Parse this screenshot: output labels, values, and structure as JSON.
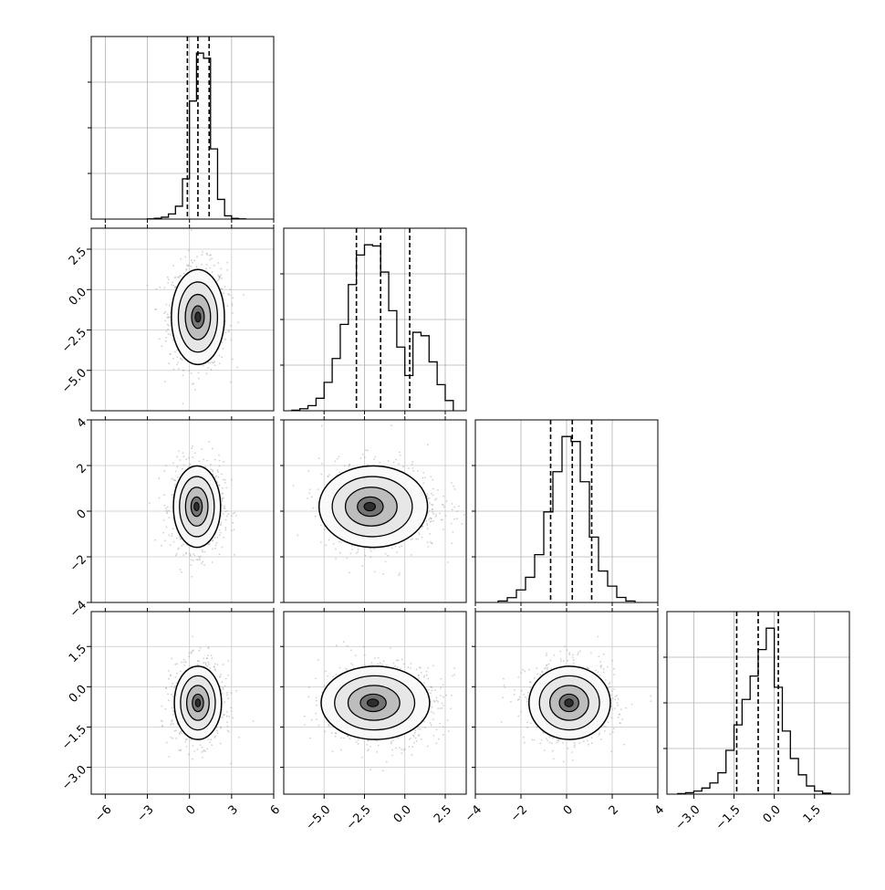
{
  "chart_data": {
    "type": "corner",
    "n_params": 4,
    "grid": true,
    "quantiles": [
      0.16,
      0.5,
      0.84
    ],
    "params": [
      {
        "range": [
          -7.0,
          6.0
        ],
        "ticks": [
          -6,
          -3,
          0,
          3,
          6
        ],
        "tick_labels": [
          "−6",
          "−3",
          "0",
          "3",
          "6"
        ],
        "quantile_values": [
          -0.15,
          0.6,
          1.4
        ],
        "hist": {
          "bin_edges": [
            -3.0,
            -2.5,
            -2.0,
            -1.5,
            -1.0,
            -0.5,
            0.0,
            0.5,
            1.0,
            1.5,
            2.0,
            2.5,
            3.0,
            3.5,
            4.0
          ],
          "counts": [
            3,
            9,
            22,
            60,
            150,
            470,
            1380,
            1940,
            1880,
            820,
            230,
            38,
            8,
            2
          ]
        }
      },
      {
        "range": [
          -7.5,
          3.8
        ],
        "ticks": [
          -5.0,
          -2.5,
          0.0,
          2.5
        ],
        "tick_labels": [
          "−5.0",
          "−2.5",
          "0.0",
          "2.5"
        ],
        "quantile_values": [
          -3.0,
          -1.5,
          0.3
        ],
        "hist": {
          "bin_edges": [
            -7.0,
            -6.5,
            -6.0,
            -5.5,
            -5.0,
            -4.5,
            -4.0,
            -3.5,
            -3.0,
            -2.5,
            -2.0,
            -1.5,
            -1.0,
            -0.5,
            0.0,
            0.5,
            1.0,
            1.5,
            2.0,
            2.5,
            3.0
          ],
          "counts": [
            5,
            18,
            45,
            110,
            250,
            460,
            760,
            1110,
            1370,
            1460,
            1450,
            1220,
            880,
            560,
            310,
            690,
            660,
            430,
            230,
            90
          ]
        }
      },
      {
        "range": [
          -4.0,
          4.0
        ],
        "ticks": [
          -4,
          -2,
          0,
          2,
          4
        ],
        "tick_labels": [
          "−4",
          "−2",
          "0",
          "2",
          "4"
        ],
        "quantile_values": [
          -0.7,
          0.25,
          1.1
        ],
        "hist": {
          "bin_edges": [
            -3.0,
            -2.6,
            -2.2,
            -1.8,
            -1.4,
            -1.0,
            -0.6,
            -0.2,
            0.2,
            0.6,
            1.0,
            1.4,
            1.8,
            2.2,
            2.6,
            3.0
          ],
          "counts": [
            12,
            38,
            100,
            200,
            380,
            720,
            1040,
            1320,
            1280,
            960,
            520,
            250,
            130,
            40,
            12
          ]
        }
      },
      {
        "range": [
          -4.0,
          2.8
        ],
        "ticks": [
          -3.0,
          -1.5,
          0.0,
          1.5
        ],
        "tick_labels": [
          "−3.0",
          "−1.5",
          "0.0",
          "1.5"
        ],
        "quantile_values": [
          -1.4,
          -0.6,
          0.15
        ],
        "hist": {
          "bin_edges": [
            -3.6,
            -3.3,
            -3.0,
            -2.7,
            -2.4,
            -2.1,
            -1.8,
            -1.5,
            -1.2,
            -0.9,
            -0.6,
            -0.3,
            0.0,
            0.3,
            0.6,
            0.9,
            1.2,
            1.5,
            1.8,
            2.1
          ],
          "counts": [
            5,
            14,
            30,
            60,
            110,
            210,
            430,
            680,
            930,
            1160,
            1420,
            1630,
            1050,
            620,
            350,
            190,
            80,
            30,
            10
          ]
        }
      }
    ],
    "pairs": [
      {
        "x_param": 0,
        "y_param": 1,
        "center": [
          0.6,
          -1.6
        ],
        "sd": [
          0.9,
          1.4
        ],
        "peak": [
          0.6,
          -1.7
        ]
      },
      {
        "x_param": 0,
        "y_param": 2,
        "center": [
          0.6,
          0.2
        ],
        "sd": [
          0.8,
          0.85
        ],
        "peak": [
          0.5,
          0.2
        ]
      },
      {
        "x_param": 1,
        "y_param": 2,
        "center": [
          -1.5,
          0.25
        ],
        "sd": [
          1.6,
          0.85
        ],
        "peak": [
          -2.2,
          0.2
        ]
      },
      {
        "x_param": 0,
        "y_param": 3,
        "center": [
          0.6,
          -0.6
        ],
        "sd": [
          0.8,
          0.65
        ],
        "peak": [
          0.6,
          -0.6
        ]
      },
      {
        "x_param": 1,
        "y_param": 3,
        "center": [
          -1.5,
          -0.6
        ],
        "sd": [
          1.6,
          0.65
        ],
        "peak": [
          -2.0,
          -0.6
        ]
      },
      {
        "x_param": 2,
        "y_param": 3,
        "center": [
          0.2,
          -0.6
        ],
        "sd": [
          0.85,
          0.65
        ],
        "peak": [
          0.1,
          -0.6
        ]
      }
    ]
  }
}
